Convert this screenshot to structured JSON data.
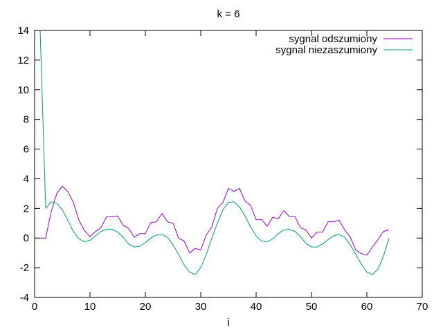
{
  "chart_data": {
    "type": "line",
    "title": "k = 6",
    "xlabel": "i",
    "ylabel": "",
    "xlim": [
      0,
      70
    ],
    "ylim": [
      -4,
      14
    ],
    "xticks": [
      0,
      10,
      20,
      30,
      40,
      50,
      60,
      70
    ],
    "yticks": [
      -4,
      -2,
      0,
      2,
      4,
      6,
      8,
      10,
      12,
      14
    ],
    "grid": false,
    "legend_position": "top-right",
    "series": [
      {
        "name": "sygnal odszumiony",
        "color": "#9400d3",
        "x": [
          1,
          2,
          3,
          4,
          5,
          6,
          7,
          8,
          9,
          10,
          11,
          12,
          13,
          14,
          15,
          16,
          17,
          18,
          19,
          20,
          21,
          22,
          23,
          24,
          25,
          26,
          27,
          28,
          29,
          30,
          31,
          32,
          33,
          34,
          35,
          36,
          37,
          38,
          39,
          40,
          41,
          42,
          43,
          44,
          45,
          46,
          47,
          48,
          49,
          50,
          51,
          52,
          53,
          54,
          55,
          56,
          57,
          58,
          59,
          60,
          61,
          62,
          63,
          64
        ],
        "y": [
          0.0,
          0.0,
          1.8,
          3.0,
          3.5,
          3.15,
          2.4,
          1.2,
          0.5,
          0.1,
          0.45,
          0.7,
          1.45,
          1.45,
          1.5,
          0.85,
          0.65,
          0.05,
          0.3,
          0.3,
          1.05,
          1.1,
          1.65,
          1.1,
          1.0,
          0.0,
          -0.2,
          -1.0,
          -0.7,
          -0.8,
          0.2,
          0.75,
          2.0,
          2.4,
          3.35,
          3.15,
          3.35,
          2.5,
          2.2,
          1.25,
          1.25,
          0.8,
          1.4,
          1.3,
          1.85,
          1.45,
          1.45,
          0.7,
          0.55,
          0.0,
          0.4,
          0.4,
          1.1,
          1.1,
          1.2,
          0.55,
          0.05,
          -0.8,
          -1.05,
          -1.15,
          -0.6,
          -0.1,
          0.45,
          0.55
        ]
      },
      {
        "name": "sygnal niezaszumiony",
        "color": "#009e73",
        "x": [
          1,
          2,
          3,
          4,
          5,
          6,
          7,
          8,
          9,
          10,
          11,
          12,
          13,
          14,
          15,
          16,
          17,
          18,
          19,
          20,
          21,
          22,
          23,
          24,
          25,
          26,
          27,
          28,
          29,
          30,
          31,
          32,
          33,
          34,
          35,
          36,
          37,
          38,
          39,
          40,
          41,
          42,
          43,
          44,
          45,
          46,
          47,
          48,
          49,
          50,
          51,
          52,
          53,
          54,
          55,
          56,
          57,
          58,
          59,
          60,
          61,
          62,
          63,
          64
        ],
        "y": [
          14.0,
          2.0,
          2.45,
          2.35,
          1.9,
          1.2,
          0.45,
          -0.05,
          -0.25,
          -0.15,
          0.15,
          0.45,
          0.6,
          0.6,
          0.4,
          0.05,
          -0.4,
          -0.6,
          -0.55,
          -0.3,
          0.0,
          0.2,
          0.25,
          0.05,
          -0.45,
          -1.1,
          -1.8,
          -2.3,
          -2.45,
          -2.0,
          -1.1,
          0.0,
          1.0,
          1.9,
          2.4,
          2.45,
          2.1,
          1.5,
          0.75,
          0.15,
          -0.2,
          -0.25,
          -0.05,
          0.3,
          0.55,
          0.6,
          0.45,
          0.1,
          -0.35,
          -0.6,
          -0.6,
          -0.4,
          -0.1,
          0.15,
          0.25,
          0.05,
          -0.45,
          -1.1,
          -1.75,
          -2.3,
          -2.45,
          -2.1,
          -1.2,
          0.0
        ]
      }
    ]
  }
}
